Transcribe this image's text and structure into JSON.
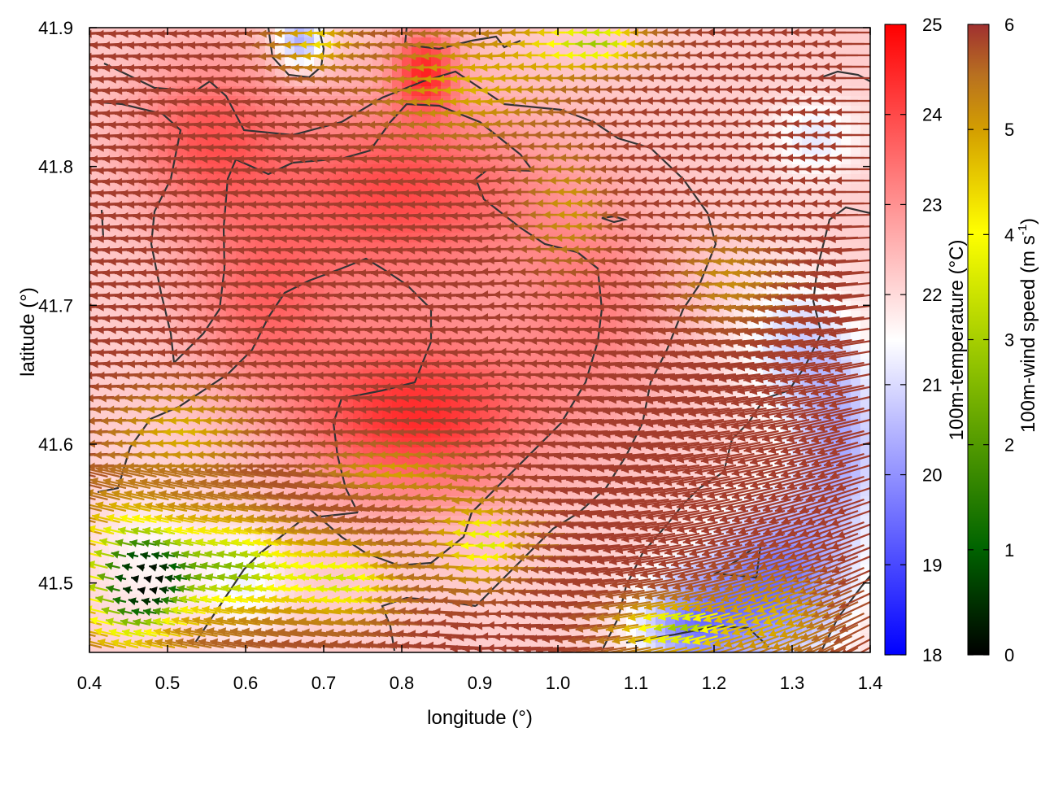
{
  "chart_data": {
    "type": "heatmap",
    "title": "",
    "xlabel": "longitude (°)",
    "ylabel": "latitude (°)",
    "xlim": [
      0.4,
      1.4
    ],
    "ylim": [
      41.45,
      41.9
    ],
    "x_ticks": [
      {
        "value": 0.4,
        "label": "0.4"
      },
      {
        "value": 0.5,
        "label": "0.5"
      },
      {
        "value": 0.6,
        "label": "0.6"
      },
      {
        "value": 0.7,
        "label": "0.7"
      },
      {
        "value": 0.8,
        "label": "0.8"
      },
      {
        "value": 0.9,
        "label": "0.9"
      },
      {
        "value": 1.0,
        "label": "1.0"
      },
      {
        "value": 1.1,
        "label": "1.1"
      },
      {
        "value": 1.2,
        "label": "1.2"
      },
      {
        "value": 1.3,
        "label": "1.3"
      },
      {
        "value": 1.4,
        "label": "1.4"
      }
    ],
    "y_ticks": [
      {
        "value": 41.5,
        "label": "41.5"
      },
      {
        "value": 41.6,
        "label": "41.6"
      },
      {
        "value": 41.7,
        "label": "41.7"
      },
      {
        "value": 41.8,
        "label": "41.8"
      },
      {
        "value": 41.9,
        "label": "41.9"
      }
    ],
    "temperature_colorbar": {
      "label": "100m-temperature (°C)",
      "range": [
        18,
        25
      ],
      "colors": [
        "#0000ff",
        "#ffffff",
        "#ff0000"
      ],
      "ticks": [
        {
          "value": 18,
          "label": "18"
        },
        {
          "value": 19,
          "label": "19"
        },
        {
          "value": 20,
          "label": "20"
        },
        {
          "value": 21,
          "label": "21"
        },
        {
          "value": 22,
          "label": "22"
        },
        {
          "value": 23,
          "label": "23"
        },
        {
          "value": 24,
          "label": "24"
        },
        {
          "value": 25,
          "label": "25"
        }
      ]
    },
    "wind_colorbar": {
      "label_main": "100m-wind speed (m s",
      "label_sup": "-1",
      "label_end": ")",
      "range": [
        0,
        6
      ],
      "colors": [
        "#000000",
        "#006400",
        "#8cc000",
        "#ffff00",
        "#d4a000",
        "#b87020",
        "#a03030"
      ],
      "ticks": [
        {
          "value": 0,
          "label": "0"
        },
        {
          "value": 1,
          "label": "1"
        },
        {
          "value": 2,
          "label": "2"
        },
        {
          "value": 3,
          "label": "3"
        },
        {
          "value": 4,
          "label": "4"
        },
        {
          "value": 5,
          "label": "5"
        },
        {
          "value": 6,
          "label": "6"
        }
      ]
    },
    "temperature_field": {
      "base": 22.2,
      "blobs": [
        {
          "lon": 0.82,
          "lat": 41.62,
          "amp": 2.2,
          "sx": 0.16,
          "sy": 0.06
        },
        {
          "lon": 0.8,
          "lat": 41.78,
          "amp": 1.8,
          "sx": 0.18,
          "sy": 0.07
        },
        {
          "lon": 0.55,
          "lat": 41.82,
          "amp": 1.5,
          "sx": 0.1,
          "sy": 0.06
        },
        {
          "lon": 0.83,
          "lat": 41.87,
          "amp": 2.0,
          "sx": 0.04,
          "sy": 0.03
        },
        {
          "lon": 0.62,
          "lat": 41.7,
          "amp": 1.2,
          "sx": 0.1,
          "sy": 0.06
        },
        {
          "lon": 1.05,
          "lat": 41.7,
          "amp": 1.0,
          "sx": 0.1,
          "sy": 0.08
        },
        {
          "lon": 1.28,
          "lat": 41.5,
          "amp": -2.6,
          "sx": 0.09,
          "sy": 0.06
        },
        {
          "lon": 1.17,
          "lat": 41.47,
          "amp": -2.2,
          "sx": 0.07,
          "sy": 0.04
        },
        {
          "lon": 1.36,
          "lat": 41.6,
          "amp": -1.8,
          "sx": 0.06,
          "sy": 0.07
        },
        {
          "lon": 1.3,
          "lat": 41.67,
          "amp": -1.2,
          "sx": 0.07,
          "sy": 0.05
        },
        {
          "lon": 1.33,
          "lat": 41.82,
          "amp": -1.0,
          "sx": 0.06,
          "sy": 0.03
        },
        {
          "lon": 0.67,
          "lat": 41.89,
          "amp": -2.0,
          "sx": 0.03,
          "sy": 0.02
        },
        {
          "lon": 0.48,
          "lat": 41.52,
          "amp": -0.6,
          "sx": 0.08,
          "sy": 0.05
        },
        {
          "lon": 0.6,
          "lat": 41.5,
          "amp": -0.8,
          "sx": 0.05,
          "sy": 0.04
        }
      ]
    },
    "wind_speed_field": {
      "base": 5.8,
      "blobs": [
        {
          "lon": 0.47,
          "lat": 41.5,
          "amp": -5.4,
          "sx": 0.07,
          "sy": 0.05
        },
        {
          "lon": 0.6,
          "lat": 41.51,
          "amp": -3.6,
          "sx": 0.09,
          "sy": 0.04
        },
        {
          "lon": 0.75,
          "lat": 41.5,
          "amp": -3.0,
          "sx": 0.08,
          "sy": 0.03
        },
        {
          "lon": 0.93,
          "lat": 41.53,
          "amp": -3.2,
          "sx": 0.06,
          "sy": 0.03
        },
        {
          "lon": 0.82,
          "lat": 41.58,
          "amp": -1.8,
          "sx": 0.09,
          "sy": 0.02
        },
        {
          "lon": 0.55,
          "lat": 41.61,
          "amp": -2.0,
          "sx": 0.09,
          "sy": 0.03
        },
        {
          "lon": 1.17,
          "lat": 41.47,
          "amp": -3.6,
          "sx": 0.07,
          "sy": 0.02
        },
        {
          "lon": 1.3,
          "lat": 41.48,
          "amp": -2.0,
          "sx": 0.07,
          "sy": 0.03
        },
        {
          "lon": 0.92,
          "lat": 41.86,
          "amp": -2.0,
          "sx": 0.12,
          "sy": 0.04
        },
        {
          "lon": 1.07,
          "lat": 41.89,
          "amp": -3.4,
          "sx": 0.08,
          "sy": 0.02
        },
        {
          "lon": 0.72,
          "lat": 41.89,
          "amp": -2.4,
          "sx": 0.05,
          "sy": 0.02
        },
        {
          "lon": 1.05,
          "lat": 41.77,
          "amp": -1.6,
          "sx": 0.05,
          "sy": 0.04
        },
        {
          "lon": 1.25,
          "lat": 41.72,
          "amp": -1.4,
          "sx": 0.06,
          "sy": 0.03
        }
      ]
    }
  }
}
